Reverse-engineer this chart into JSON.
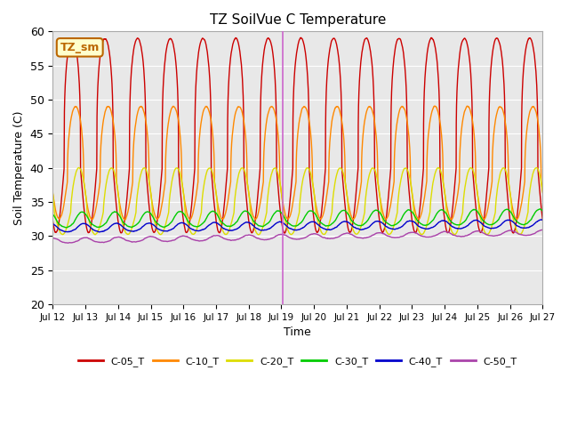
{
  "title": "TZ SoilVue C Temperature",
  "ylabel": "Soil Temperature (C)",
  "xlabel": "Time",
  "ylim": [
    20,
    60
  ],
  "yticks": [
    20,
    25,
    30,
    35,
    40,
    45,
    50,
    55,
    60
  ],
  "start_day": 12,
  "end_day": 27,
  "annotation_text": "TZ_sm",
  "annotation_color": "#bb6600",
  "annotation_bg": "#ffffcc",
  "bg_color": "#e8e8e8",
  "vline_day": 7.05,
  "vline_color": "#cc66cc",
  "colors": {
    "C-05_T": "#cc0000",
    "C-10_T": "#ff8800",
    "C-20_T": "#dddd00",
    "C-30_T": "#00cc00",
    "C-40_T": "#0000cc",
    "C-50_T": "#aa44aa"
  },
  "legend_order": [
    "C-05_T",
    "C-10_T",
    "C-20_T",
    "C-30_T",
    "C-40_T",
    "C-50_T"
  ],
  "sensor_params": {
    "C-05_T": {
      "base": 40.0,
      "amp": 19.0,
      "sharpness": 3.5,
      "phase": 0.35,
      "trend": 0.0,
      "min_clip": 21.5,
      "max_clip": 60.0
    },
    "C-10_T": {
      "base": 38.0,
      "amp": 11.0,
      "sharpness": 2.5,
      "phase": 0.45,
      "trend": 0.0,
      "min_clip": 20.0,
      "max_clip": 60.0
    },
    "C-20_T": {
      "base": 33.5,
      "amp": 6.5,
      "sharpness": 1.5,
      "phase": 0.55,
      "trend": 0.0,
      "min_clip": 20.0,
      "max_clip": 60.0
    },
    "C-30_T": {
      "base": 32.0,
      "amp": 1.5,
      "sharpness": 1.0,
      "phase": 0.65,
      "trend": 0.03,
      "min_clip": 20.0,
      "max_clip": 60.0
    },
    "C-40_T": {
      "base": 31.0,
      "amp": 0.8,
      "sharpness": 1.0,
      "phase": 0.7,
      "trend": 0.04,
      "min_clip": 20.0,
      "max_clip": 60.0
    },
    "C-50_T": {
      "base": 29.2,
      "amp": 0.5,
      "sharpness": 1.0,
      "phase": 0.75,
      "trend": 0.08,
      "min_clip": 20.0,
      "max_clip": 60.0
    }
  }
}
